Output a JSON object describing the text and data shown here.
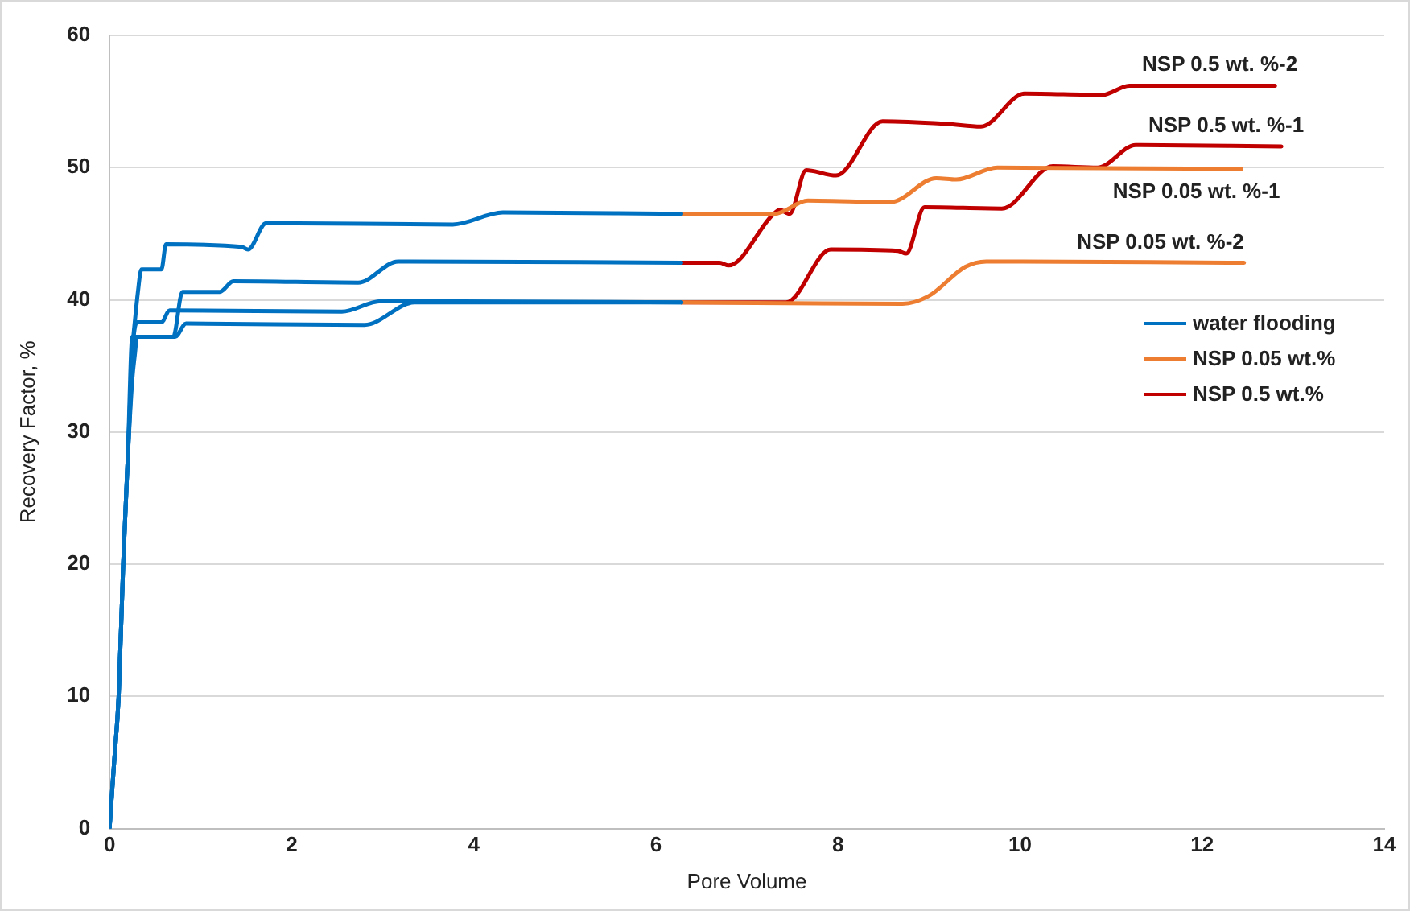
{
  "chart_data": {
    "type": "line",
    "xlabel": "Pore Volume",
    "ylabel": "Recovery Factor, %",
    "xlim": [
      0,
      14
    ],
    "xticks": [
      0,
      2,
      4,
      6,
      8,
      10,
      12,
      14
    ],
    "ylim": [
      0,
      60
    ],
    "yticks": [
      0,
      10,
      20,
      30,
      40,
      50,
      60
    ],
    "grid": "y",
    "legend": "right",
    "marker": "none",
    "line_style": "solid",
    "series": [
      {
        "name": "water flooding",
        "color": "#0070c0",
        "x": [
          0,
          0.05,
          0.1,
          0.15,
          0.2,
          0.24,
          0.26,
          0.28,
          0.31,
          0.35,
          0.57,
          0.62,
          1.45,
          1.52,
          1.72,
          3.77,
          4.32,
          6.28
        ],
        "values": [
          0,
          5,
          10,
          20,
          28,
          34,
          37,
          38.5,
          40.5,
          42.3,
          42.3,
          44.2,
          44,
          43.8,
          45.8,
          45.7,
          46.6,
          46.5
        ]
      },
      {
        "color": "#0070c0",
        "x": [
          0,
          0.05,
          0.1,
          0.15,
          0.2,
          0.25,
          0.7,
          0.8,
          1.21,
          1.36,
          2.73,
          3.17,
          6.28
        ],
        "values": [
          0,
          5,
          10,
          20,
          28,
          37.2,
          37.2,
          40.6,
          40.6,
          41.4,
          41.3,
          42.9,
          42.8
        ]
      },
      {
        "color": "#0070c0",
        "x": [
          0,
          0.05,
          0.1,
          0.15,
          0.2,
          0.25,
          0.3,
          0.57,
          0.66,
          2.55,
          2.98,
          6.28
        ],
        "values": [
          0,
          5,
          10,
          20,
          28,
          36,
          38.3,
          38.3,
          39.2,
          39.1,
          39.9,
          39.8
        ]
      },
      {
        "color": "#0070c0",
        "x": [
          0,
          0.05,
          0.1,
          0.15,
          0.2,
          0.25,
          0.28,
          0.3,
          0.72,
          0.84,
          2.8,
          3.35,
          6.28
        ],
        "values": [
          0,
          5,
          10,
          20,
          28,
          34,
          36,
          37.2,
          37.2,
          38.2,
          38.1,
          39.8,
          39.8
        ]
      },
      {
        "name": "NSP 0.05 wt.%",
        "color": "#ed7d31",
        "x": [
          6.28,
          7.3,
          7.67,
          8.58,
          9.08,
          9.3,
          9.75,
          12.43
        ],
        "values": [
          46.5,
          46.5,
          47.5,
          47.4,
          49.2,
          49.1,
          50.0,
          49.9
        ]
      },
      {
        "color": "#ed7d31",
        "x": [
          6.28,
          8.71,
          9.0,
          9.4,
          9.63,
          12.46
        ],
        "values": [
          39.8,
          39.7,
          40.3,
          42.5,
          42.9,
          42.8
        ]
      },
      {
        "name": "NSP 0.5 wt.%",
        "color": "#c00000",
        "x": [
          6.28,
          6.7,
          6.8,
          7.28,
          7.36,
          7.47,
          7.65,
          7.98,
          8.49,
          9.2,
          9.57,
          10.05,
          10.9,
          11.2,
          12.8
        ],
        "values": [
          42.8,
          42.8,
          42.6,
          46.4,
          46.8,
          46.5,
          49.8,
          49.4,
          53.5,
          53.3,
          53.1,
          55.6,
          55.5,
          56.2,
          56.2
        ]
      },
      {
        "color": "#c00000",
        "x": [
          6.28,
          7.43,
          7.92,
          8.66,
          8.75,
          8.95,
          9.8,
          10.36,
          10.85,
          11.27,
          12.87
        ],
        "values": [
          39.8,
          39.8,
          43.8,
          43.7,
          43.5,
          47.0,
          46.9,
          50.1,
          50.0,
          51.7,
          51.6
        ]
      }
    ],
    "annotations": [
      {
        "text": "NSP 0.5 wt. %-2",
        "x": 12.8,
        "y": 56.2
      },
      {
        "text": "NSP 0.5 wt. %-1",
        "x": 12.87,
        "y": 51.6
      },
      {
        "text": "NSP 0.05 wt. %-1",
        "x": 12.43,
        "y": 49.9
      },
      {
        "text": "NSP 0.05 wt. %-2",
        "x": 12.46,
        "y": 42.8
      }
    ]
  }
}
